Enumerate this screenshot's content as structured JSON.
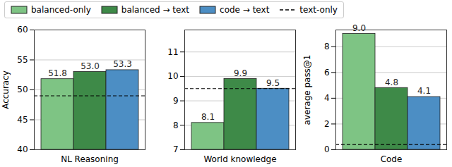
{
  "chart_data": [
    {
      "type": "bar",
      "categories": [
        "NL Reasoning"
      ],
      "y_label": "Accuracy",
      "ylim": [
        40,
        60
      ],
      "yticks": [
        40,
        45,
        50,
        55,
        60
      ],
      "grid": true,
      "data_labels": true,
      "legend": "top",
      "series": [
        {
          "name": "balanced-only",
          "color": "#7ec484",
          "values": [
            51.8
          ],
          "value_labels": [
            "51.8"
          ]
        },
        {
          "name": "balanced → text",
          "color": "#3e8a48",
          "values": [
            53.0
          ],
          "value_labels": [
            "53.0"
          ]
        },
        {
          "name": "code → text",
          "color": "#4c8ec4",
          "values": [
            53.3
          ],
          "value_labels": [
            "53.3"
          ]
        },
        {
          "name": "text-only",
          "type": "line",
          "line_style": "dashed",
          "color": "#000000",
          "values": [
            49.0
          ]
        }
      ]
    },
    {
      "type": "bar",
      "categories": [
        "World knowledge"
      ],
      "ylim": [
        7,
        11.9
      ],
      "yticks": [
        7,
        8,
        9,
        10,
        11
      ],
      "grid": true,
      "data_labels": true,
      "series": [
        {
          "name": "balanced-only",
          "color": "#7ec484",
          "values": [
            8.1
          ],
          "value_labels": [
            "8.1"
          ]
        },
        {
          "name": "balanced → text",
          "color": "#3e8a48",
          "values": [
            9.9
          ],
          "value_labels": [
            "9.9"
          ]
        },
        {
          "name": "code → text",
          "color": "#4c8ec4",
          "values": [
            9.5
          ],
          "value_labels": [
            "9.5"
          ]
        },
        {
          "name": "text-only",
          "type": "line",
          "line_style": "dashed",
          "color": "#000000",
          "values": [
            9.5
          ]
        }
      ]
    },
    {
      "type": "bar",
      "categories": [
        "Code"
      ],
      "y_label": "average pass@1",
      "ylim": [
        0,
        9.3
      ],
      "yticks": [
        0,
        2,
        4,
        6,
        8
      ],
      "grid": true,
      "data_labels": true,
      "series": [
        {
          "name": "balanced-only",
          "color": "#7ec484",
          "values": [
            9.0
          ],
          "value_labels": [
            "9.0"
          ]
        },
        {
          "name": "balanced → text",
          "color": "#3e8a48",
          "values": [
            4.8
          ],
          "value_labels": [
            "4.8"
          ]
        },
        {
          "name": "code → text",
          "color": "#4c8ec4",
          "values": [
            4.1
          ],
          "value_labels": [
            "4.1"
          ]
        },
        {
          "name": "text-only",
          "type": "line",
          "line_style": "dashed",
          "color": "#000000",
          "values": [
            0.4
          ]
        }
      ]
    }
  ]
}
